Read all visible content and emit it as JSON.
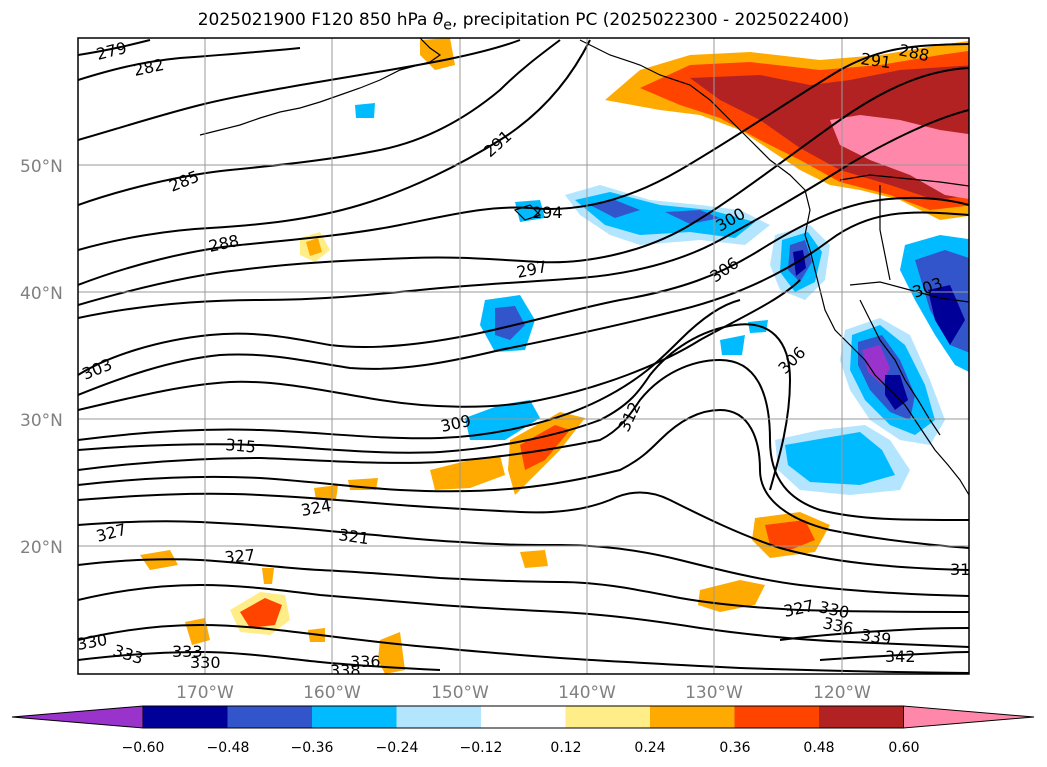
{
  "title_prefix": "2025021900 F120 850 hPa ",
  "title_theta": "θ",
  "title_sub": "e",
  "title_suffix": ", precipitation PC (2025022300 - 2025022400)",
  "lat_labels": [
    "50°N",
    "40°N",
    "30°N",
    "20°N"
  ],
  "lon_labels": [
    "170°W",
    "160°W",
    "150°W",
    "140°W",
    "130°W",
    "120°W"
  ],
  "contour_labels": [
    "279",
    "282",
    "285",
    "288",
    "291",
    "294",
    "297",
    "300",
    "303",
    "306",
    "306",
    "309",
    "312",
    "315",
    "321",
    "324",
    "327",
    "327",
    "330",
    "330",
    "333",
    "333",
    "336",
    "336",
    "339",
    "342",
    "303",
    "288",
    "291",
    "31",
    "327",
    "330",
    "338"
  ],
  "colorbar": {
    "colors": [
      "#9933cc",
      "#000099",
      "#3355cc",
      "#00bbff",
      "#b3e5ff",
      "#ffffff",
      "#ffee88",
      "#ffaa00",
      "#ff4400",
      "#b22222",
      "#ff88aa"
    ],
    "ticks": [
      "−0.60",
      "−0.48",
      "−0.36",
      "−0.24",
      "−0.12",
      "0.12",
      "0.24",
      "0.36",
      "0.48",
      "0.60"
    ]
  }
}
